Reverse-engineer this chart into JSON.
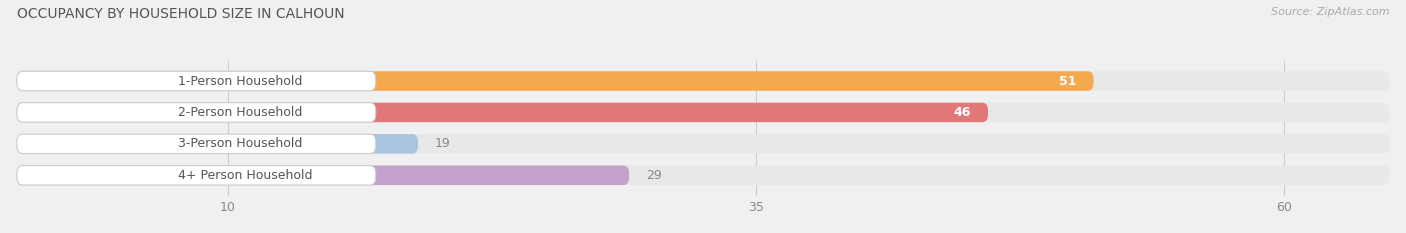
{
  "title": "OCCUPANCY BY HOUSEHOLD SIZE IN CALHOUN",
  "source": "Source: ZipAtlas.com",
  "categories": [
    "1-Person Household",
    "2-Person Household",
    "3-Person Household",
    "4+ Person Household"
  ],
  "values": [
    51,
    46,
    19,
    29
  ],
  "bar_colors": [
    "#F5A94E",
    "#E07878",
    "#A8C4E0",
    "#C4A0CC"
  ],
  "value_inside": [
    true,
    true,
    false,
    false
  ],
  "xlim_max": 65,
  "xticks": [
    10,
    35,
    60
  ],
  "bg_color": "#f0f0f0",
  "bar_bg_color": "#e8e8e8",
  "white_label_bg": "#ffffff",
  "title_color": "#555555",
  "source_color": "#aaaaaa",
  "label_color": "#555555",
  "value_color_inside": "#ffffff",
  "value_color_outside": "#888888",
  "grid_color": "#cccccc",
  "title_fontsize": 10,
  "label_fontsize": 9,
  "value_fontsize": 9,
  "tick_fontsize": 9,
  "source_fontsize": 8,
  "bar_height": 0.62,
  "figsize": [
    14.06,
    2.33
  ],
  "dpi": 100
}
